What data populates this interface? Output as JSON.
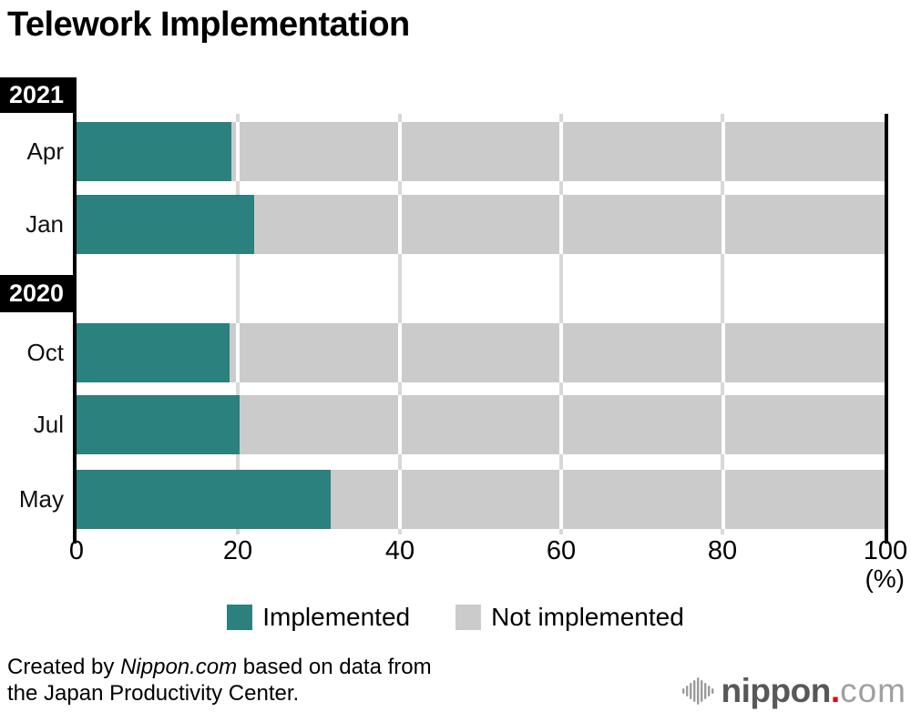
{
  "title": "Telework Implementation",
  "chart_data": {
    "type": "bar",
    "orientation": "horizontal",
    "stacked": true,
    "title": "Telework Implementation",
    "unit_label": "(%)",
    "xlim": [
      0,
      100
    ],
    "ticks": [
      "0",
      "20",
      "40",
      "60",
      "80",
      "100"
    ],
    "series_names": [
      "Implemented",
      "Not implemented"
    ],
    "groups": [
      {
        "year": "2021",
        "rows": [
          {
            "label": "Apr",
            "implemented": 19.2,
            "not_implemented": 80.8
          },
          {
            "label": "Jan",
            "implemented": 22.0,
            "not_implemented": 78.0
          }
        ]
      },
      {
        "year": "2020",
        "rows": [
          {
            "label": "Oct",
            "implemented": 18.9,
            "not_implemented": 81.1
          },
          {
            "label": "Jul",
            "implemented": 20.2,
            "not_implemented": 79.8
          },
          {
            "label": "May",
            "implemented": 31.5,
            "not_implemented": 68.5
          }
        ]
      }
    ],
    "colors": {
      "implemented": "#2a817e",
      "not_implemented": "#cbcbcb"
    },
    "legend_position": "bottom",
    "grid": true
  },
  "legend": {
    "items": [
      {
        "label": "Implemented",
        "color": "#2a817e"
      },
      {
        "label": "Not implemented",
        "color": "#cbcbcb"
      }
    ]
  },
  "footer": {
    "credit_prefix": "Created by ",
    "credit_source": "Nippon.com",
    "credit_suffix": " based on data from",
    "credit_line2": "the Japan Productivity Center."
  },
  "logo": {
    "name_bold": "nippon",
    "dot": ".",
    "name_light": "com"
  }
}
